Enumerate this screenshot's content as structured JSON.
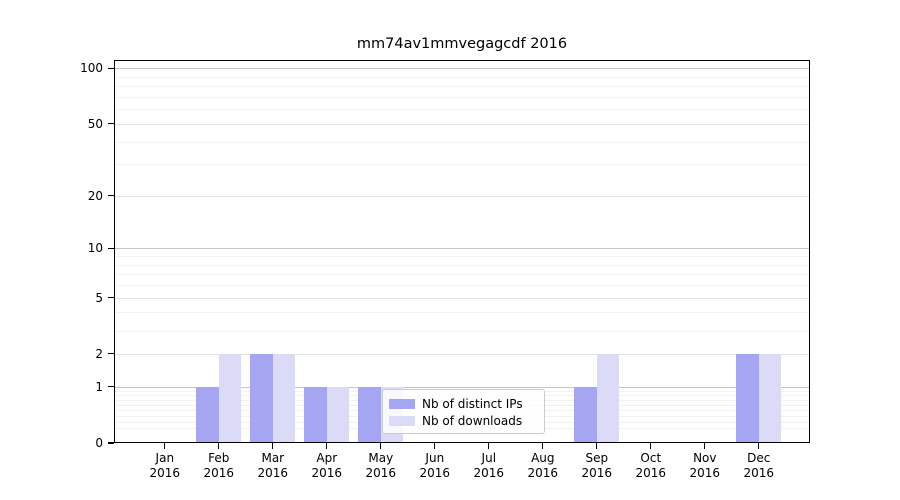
{
  "chart_data": {
    "type": "bar",
    "title": "mm74av1mmvegagcdf 2016",
    "categories": [
      "Jan 2016",
      "Feb 2016",
      "Mar 2016",
      "Apr 2016",
      "May 2016",
      "Jun 2016",
      "Jul 2016",
      "Aug 2016",
      "Sep 2016",
      "Oct 2016",
      "Nov 2016",
      "Dec 2016"
    ],
    "months": [
      "Jan",
      "Feb",
      "Mar",
      "Apr",
      "May",
      "Jun",
      "Jul",
      "Aug",
      "Sep",
      "Oct",
      "Nov",
      "Dec"
    ],
    "year": "2016",
    "series": [
      {
        "name": "Nb of distinct IPs",
        "color": "#a5a5f2",
        "values": [
          0,
          1,
          2,
          1,
          1,
          0,
          0,
          0,
          1,
          0,
          0,
          2
        ]
      },
      {
        "name": "Nb of downloads",
        "color": "#dbdbf8",
        "values": [
          0,
          2,
          2,
          1,
          1,
          0,
          0,
          0,
          2,
          0,
          0,
          2
        ]
      }
    ],
    "xlabel": "",
    "ylabel": "",
    "y_scale": "log10(1+v)",
    "ylim": [
      0,
      111
    ],
    "y_major_ticks": [
      0,
      1,
      2,
      5,
      10,
      20,
      50,
      100
    ],
    "y_decade_ticks": [
      1,
      10,
      100
    ],
    "y_minor_ticks": [
      0.2,
      0.3,
      0.4,
      0.5,
      0.6,
      0.7,
      0.8,
      0.9,
      3,
      4,
      6,
      7,
      8,
      9,
      30,
      40,
      60,
      70,
      80,
      90
    ],
    "grid": "horizontal",
    "legend_position": "lower center-left inside plot",
    "style": {
      "decade_grid_color": "#c6c6c6",
      "major_grid_color": "#e3e3e3",
      "minor_grid_color": "#f2f2f2",
      "spine_color": "#000000",
      "background": "#ffffff"
    }
  }
}
